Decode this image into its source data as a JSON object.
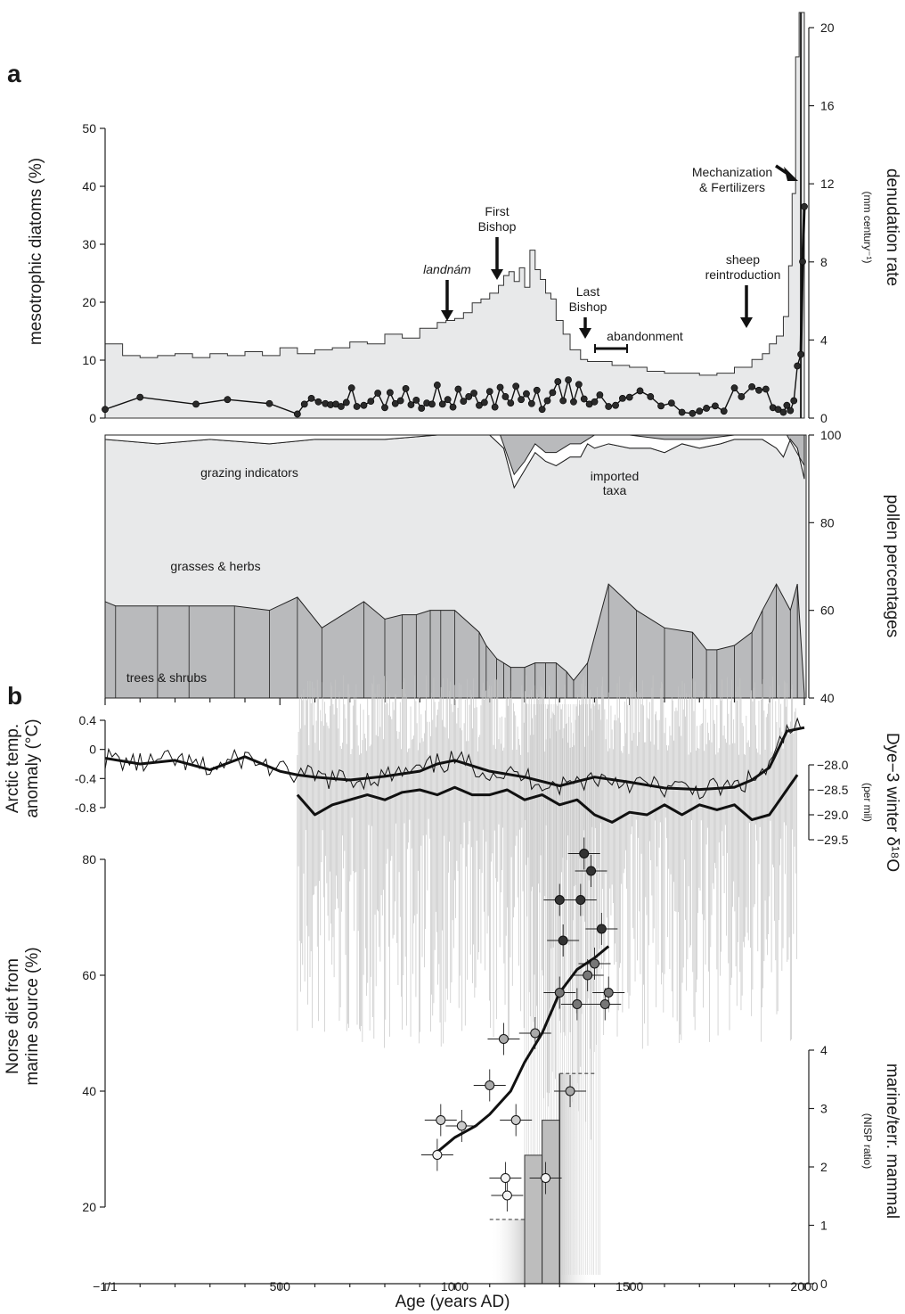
{
  "panel_labels": {
    "a": "a",
    "b": "b"
  },
  "colors": {
    "fill_light": "#e8e9ea",
    "fill_mid": "#b9babc",
    "ink": "#1f1f1f",
    "vline": "#c4c4c4"
  },
  "x_axis": {
    "label": "Age (years AD)",
    "ticks": [
      "−1/1",
      "500",
      "1000",
      "1500",
      "2000"
    ]
  },
  "annotations": {
    "landnam": "landnám",
    "first_bishop_1": "First",
    "first_bishop_2": "Bishop",
    "last_bishop_1": "Last",
    "last_bishop_2": "Bishop",
    "abandonment": "abandonment",
    "sheep_1": "sheep",
    "sheep_2": "reintroduction",
    "mech_1": "Mechanization",
    "mech_2": "& Fertilizers",
    "grazing": "grazing indicators",
    "imported_1": "imported",
    "imported_2": "taxa",
    "grasses": "grasses & herbs",
    "trees": "trees & shrubs"
  },
  "chart_data": [
    {
      "type": "area",
      "panel": "a (top)",
      "ylabel_left": "mesotrophic diatoms (%)",
      "ylim_left": [
        0,
        50
      ],
      "yticks_left": [
        "0",
        "10",
        "20",
        "30",
        "40",
        "50"
      ],
      "ylabel_right_1": "denudation rate",
      "ylabel_right_2": "(mm century⁻¹)",
      "ylim_right": [
        0,
        20
      ],
      "yticks_right": [
        "0",
        "4",
        "8",
        "12",
        "16",
        "20"
      ],
      "xlim": [
        0,
        2000
      ],
      "series": [
        {
          "axis": "right",
          "style": "step-filled",
          "x": [
            0,
            50,
            100,
            150,
            200,
            250,
            300,
            350,
            400,
            450,
            500,
            550,
            600,
            650,
            700,
            750,
            800,
            850,
            900,
            950,
            975,
            1000,
            1025,
            1050,
            1075,
            1100,
            1125,
            1140,
            1155,
            1170,
            1185,
            1200,
            1215,
            1230,
            1245,
            1260,
            1275,
            1290,
            1310,
            1330,
            1360,
            1380,
            1400,
            1450,
            1500,
            1550,
            1600,
            1650,
            1700,
            1750,
            1800,
            1850,
            1880,
            1900,
            1920,
            1940,
            1955,
            1965,
            1975,
            1985,
            1992,
            2000
          ],
          "values": [
            3.8,
            3.2,
            3.1,
            3.2,
            3.3,
            3.1,
            3.3,
            3.2,
            3.4,
            3.2,
            3.6,
            3.3,
            3.5,
            3.6,
            3.9,
            3.8,
            4.3,
            4.1,
            4.6,
            4.9,
            5.0,
            5.1,
            5.4,
            5.9,
            6.1,
            6.4,
            6.8,
            7.3,
            7.5,
            7.0,
            7.7,
            6.7,
            8.6,
            7.6,
            7.1,
            6.4,
            6.1,
            5.0,
            4.3,
            3.5,
            3.0,
            2.9,
            2.9,
            2.7,
            2.6,
            2.4,
            2.3,
            2.3,
            2.2,
            2.3,
            2.6,
            3.0,
            3.3,
            3.8,
            4.2,
            5.2,
            7.8,
            11.5,
            18.5,
            21.0,
            21.0,
            21.0
          ]
        },
        {
          "axis": "left",
          "style": "line-markers",
          "x": [
            0,
            100,
            260,
            350,
            470,
            550,
            570,
            590,
            610,
            630,
            645,
            660,
            675,
            690,
            705,
            720,
            740,
            760,
            780,
            800,
            815,
            830,
            845,
            860,
            875,
            890,
            905,
            920,
            935,
            950,
            965,
            980,
            995,
            1010,
            1025,
            1040,
            1055,
            1070,
            1085,
            1100,
            1115,
            1130,
            1145,
            1160,
            1175,
            1190,
            1205,
            1220,
            1235,
            1250,
            1265,
            1280,
            1295,
            1310,
            1325,
            1340,
            1355,
            1370,
            1385,
            1400,
            1415,
            1440,
            1460,
            1480,
            1500,
            1530,
            1560,
            1590,
            1620,
            1650,
            1680,
            1700,
            1720,
            1745,
            1770,
            1800,
            1820,
            1850,
            1870,
            1890,
            1910,
            1925,
            1940,
            1950,
            1960,
            1970,
            1980,
            1990,
            1995,
            2000
          ],
          "values": [
            1.5,
            3.6,
            2.4,
            3.2,
            2.5,
            0.7,
            2.4,
            3.4,
            2.8,
            2.5,
            2.3,
            2.4,
            2.0,
            2.7,
            5.2,
            2.0,
            2.2,
            2.9,
            4.3,
            1.8,
            4.4,
            2.5,
            3.0,
            5.1,
            2.3,
            3.1,
            1.7,
            2.6,
            2.4,
            5.7,
            2.4,
            3.2,
            1.9,
            5.0,
            2.9,
            3.7,
            4.3,
            2.2,
            2.7,
            4.6,
            1.9,
            5.3,
            3.7,
            2.6,
            5.5,
            3.2,
            4.2,
            2.5,
            4.8,
            1.5,
            3.0,
            4.4,
            6.3,
            3.0,
            6.6,
            2.8,
            5.8,
            3.3,
            2.4,
            2.8,
            4.0,
            2.0,
            2.2,
            3.4,
            3.6,
            4.7,
            3.7,
            2.1,
            2.6,
            1.0,
            0.8,
            1.2,
            1.7,
            2.1,
            1.2,
            5.2,
            3.7,
            5.4,
            4.8,
            5.0,
            1.8,
            1.5,
            1.0,
            2.2,
            1.3,
            3.0,
            9.0,
            11.0,
            27.0,
            36.5
          ]
        }
      ]
    },
    {
      "type": "area",
      "panel": "a (pollen)",
      "ylabel_right": "pollen percentages",
      "ylim_right": [
        40,
        100
      ],
      "yticks_right": [
        "40",
        "60",
        "80",
        "100"
      ],
      "series": [
        {
          "name": "trees & shrubs",
          "x": [
            0,
            30,
            150,
            240,
            370,
            470,
            550,
            620,
            740,
            800,
            850,
            890,
            930,
            960,
            1000,
            1070,
            1090,
            1120,
            1140,
            1160,
            1200,
            1230,
            1260,
            1290,
            1320,
            1340,
            1380,
            1440,
            1520,
            1600,
            1680,
            1720,
            1750,
            1800,
            1850,
            1880,
            1920,
            1960,
            1980,
            2000
          ],
          "values": [
            62,
            61,
            61,
            61,
            61,
            60,
            63,
            56,
            62,
            58,
            59,
            59,
            60,
            60,
            60,
            55,
            52,
            49,
            48,
            47,
            47,
            48,
            48,
            48,
            46,
            44,
            48,
            66,
            60,
            56,
            55,
            51,
            51,
            52,
            55,
            60,
            66,
            60,
            66,
            41
          ]
        },
        {
          "name": "grasses & herbs (upper edge)",
          "x": [
            0,
            150,
            300,
            470,
            600,
            800,
            950,
            1100,
            1140,
            1170,
            1200,
            1230,
            1260,
            1290,
            1330,
            1360,
            1380,
            1400,
            1440,
            1500,
            1560,
            1600,
            1650,
            1700,
            1760,
            1800,
            1850,
            1880,
            1920,
            1940,
            1960,
            1980,
            2000
          ],
          "values": [
            99,
            98,
            99,
            98,
            99,
            99,
            100,
            100,
            97,
            88,
            92,
            96,
            94,
            93,
            95,
            95,
            98,
            97,
            98,
            97,
            97,
            96,
            98,
            97,
            98,
            99,
            99,
            99,
            97,
            95,
            99,
            97,
            90
          ]
        },
        {
          "name": "imported taxa (upper edge)",
          "x": [
            0,
            800,
            1100,
            1130,
            1170,
            1200,
            1230,
            1260,
            1290,
            1330,
            1360,
            1400,
            1500,
            1600,
            1700,
            1800,
            1900,
            1950,
            2000
          ],
          "values": [
            100,
            100,
            100,
            100,
            91,
            94,
            98,
            96,
            96,
            98,
            98,
            100,
            100,
            99,
            99,
            100,
            100,
            100,
            93
          ]
        }
      ]
    },
    {
      "type": "line",
      "panel": "b (temperature)",
      "ylabel_1": "Arctic temp.",
      "ylabel_2": "anomaly (°C)",
      "ylim": [
        -0.9,
        0.45
      ],
      "yticks": [
        "0.4",
        "0",
        "-0.4",
        "-0.8"
      ],
      "series": [
        {
          "x": [
            0,
            100,
            200,
            300,
            400,
            500,
            550,
            600,
            700,
            800,
            900,
            950,
            1000,
            1100,
            1200,
            1300,
            1400,
            1500,
            1600,
            1700,
            1800,
            1850,
            1900,
            1950,
            2000
          ],
          "values": [
            -0.12,
            -0.2,
            -0.15,
            -0.28,
            -0.1,
            -0.3,
            -0.35,
            -0.38,
            -0.42,
            -0.37,
            -0.3,
            -0.2,
            -0.15,
            -0.3,
            -0.38,
            -0.5,
            -0.38,
            -0.45,
            -0.53,
            -0.55,
            -0.52,
            -0.42,
            -0.25,
            0.25,
            0.3
          ]
        }
      ]
    },
    {
      "type": "line",
      "panel": "b (Dye-3)",
      "ylabel_1": "Dye−3 winter δ¹⁸O",
      "ylabel_2": "(per mil)",
      "ylim": [
        -29.5,
        -28.0
      ],
      "yticks": [
        "−28.0",
        "−28.5",
        "−29.0",
        "−29.5"
      ],
      "series": [
        {
          "x": [
            550,
            600,
            650,
            700,
            750,
            800,
            850,
            900,
            950,
            1000,
            1050,
            1100,
            1150,
            1200,
            1250,
            1300,
            1350,
            1400,
            1450,
            1500,
            1550,
            1600,
            1650,
            1700,
            1750,
            1800,
            1850,
            1900,
            1950,
            1980
          ],
          "values": [
            -28.6,
            -29.0,
            -28.8,
            -28.7,
            -28.6,
            -28.7,
            -28.55,
            -28.5,
            -28.6,
            -28.45,
            -28.6,
            -28.6,
            -28.5,
            -28.7,
            -28.6,
            -28.8,
            -28.7,
            -29.0,
            -29.15,
            -28.95,
            -29.0,
            -28.8,
            -29.0,
            -28.8,
            -28.9,
            -28.8,
            -29.1,
            -29.0,
            -28.5,
            -28.2
          ]
        }
      ]
    },
    {
      "type": "scatter",
      "panel": "b (Norse diet)",
      "ylabel_1": "Norse diet from",
      "ylabel_2": "marine source (%)",
      "ylim": [
        10,
        85
      ],
      "yticks": [
        "20",
        "40",
        "60",
        "80"
      ],
      "series": [
        {
          "name": "points",
          "x": [
            950,
            960,
            1020,
            1100,
            1140,
            1145,
            1150,
            1175,
            1230,
            1260,
            1300,
            1300,
            1310,
            1330,
            1350,
            1360,
            1370,
            1380,
            1390,
            1400,
            1420,
            1430,
            1440
          ],
          "values": [
            29,
            35,
            34,
            41,
            49,
            25,
            22,
            35,
            50,
            25,
            57,
            73,
            66,
            40,
            55,
            73,
            81,
            60,
            78,
            62,
            68,
            55,
            57
          ]
        },
        {
          "name": "trend",
          "x": [
            940,
            1000,
            1060,
            1100,
            1160,
            1200,
            1250,
            1300,
            1350,
            1400,
            1440
          ],
          "values": [
            29,
            32,
            34,
            36,
            40,
            45,
            50,
            57,
            61,
            63,
            65
          ]
        }
      ]
    },
    {
      "type": "bar",
      "panel": "b (NISP)",
      "ylabel_1": "marine/terr. mammal",
      "ylabel_2": "(NISP ratio)",
      "ylim": [
        0,
        4
      ],
      "yticks": [
        "0",
        "1",
        "2",
        "3",
        "4"
      ],
      "categories": [
        "1100–1200",
        "1200–1250",
        "1250–1300",
        "1300–1400"
      ],
      "values": [
        1.1,
        2.2,
        2.8,
        3.6
      ]
    }
  ]
}
